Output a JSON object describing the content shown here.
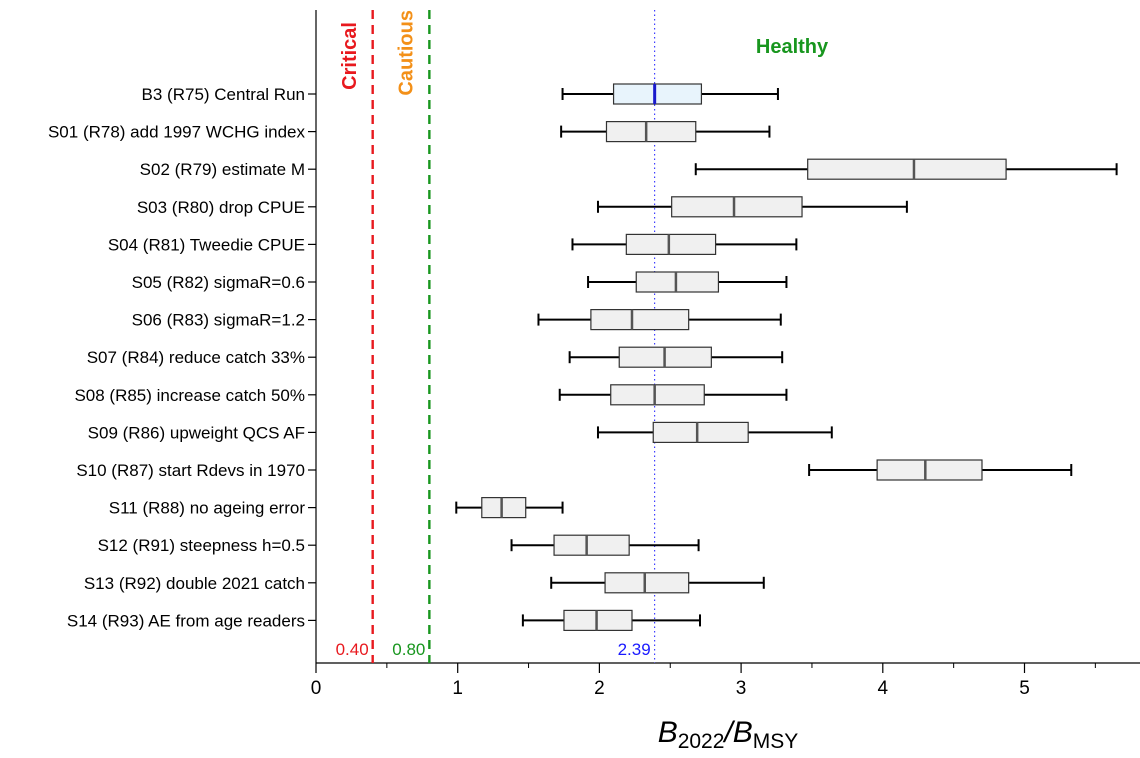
{
  "chart_data": {
    "type": "boxplot",
    "orientation": "horizontal",
    "xlabel": {
      "main": "B",
      "sub1": "2022",
      "sep": "/",
      "main2": "B",
      "sub2": "MSY"
    },
    "xlim": [
      0,
      5.8
    ],
    "xticks": [
      0,
      1,
      2,
      3,
      4,
      5
    ],
    "xtick_labels": [
      "0",
      "1",
      "2",
      "3",
      "4",
      "5"
    ],
    "zones": [
      {
        "label": "Critical",
        "color": "#e8191e"
      },
      {
        "label": "Cautious",
        "color": "#f39018"
      },
      {
        "label": "Healthy",
        "color": "#18961e"
      }
    ],
    "reference_lines": [
      {
        "value": 0.4,
        "label": "0.40",
        "color": "#e8191e",
        "style": "dashed"
      },
      {
        "value": 0.8,
        "label": "0.80",
        "color": "#18961e",
        "style": "dashed"
      },
      {
        "value": 2.39,
        "label": "2.39",
        "color": "#1a1aff",
        "style": "dotted"
      }
    ],
    "box_fill": "#f0f0f0",
    "highlight_fill": "#e8f4fc",
    "highlight_median_color": "#1a1acc",
    "runs": [
      {
        "label": "B3 (R75) Central Run",
        "whisker_low": 1.74,
        "q1": 2.1,
        "median": 2.39,
        "q3": 2.72,
        "whisker_high": 3.26,
        "highlight": true
      },
      {
        "label": "S01 (R78) add 1997 WCHG index",
        "whisker_low": 1.73,
        "q1": 2.05,
        "median": 2.33,
        "q3": 2.68,
        "whisker_high": 3.2
      },
      {
        "label": "S02 (R79) estimate M",
        "whisker_low": 2.68,
        "q1": 3.47,
        "median": 4.22,
        "q3": 4.87,
        "whisker_high": 5.65
      },
      {
        "label": "S03 (R80) drop CPUE",
        "whisker_low": 1.99,
        "q1": 2.51,
        "median": 2.95,
        "q3": 3.43,
        "whisker_high": 4.17
      },
      {
        "label": "S04 (R81) Tweedie CPUE",
        "whisker_low": 1.81,
        "q1": 2.19,
        "median": 2.49,
        "q3": 2.82,
        "whisker_high": 3.39
      },
      {
        "label": "S05 (R82) sigmaR=0.6",
        "whisker_low": 1.92,
        "q1": 2.26,
        "median": 2.54,
        "q3": 2.84,
        "whisker_high": 3.32
      },
      {
        "label": "S06 (R83) sigmaR=1.2",
        "whisker_low": 1.57,
        "q1": 1.94,
        "median": 2.23,
        "q3": 2.63,
        "whisker_high": 3.28
      },
      {
        "label": "S07 (R84) reduce catch 33%",
        "whisker_low": 1.79,
        "q1": 2.14,
        "median": 2.46,
        "q3": 2.79,
        "whisker_high": 3.29
      },
      {
        "label": "S08 (R85) increase catch 50%",
        "whisker_low": 1.72,
        "q1": 2.08,
        "median": 2.39,
        "q3": 2.74,
        "whisker_high": 3.32
      },
      {
        "label": "S09 (R86) upweight QCS AF",
        "whisker_low": 1.99,
        "q1": 2.38,
        "median": 2.69,
        "q3": 3.05,
        "whisker_high": 3.64
      },
      {
        "label": "S10 (R87) start Rdevs in 1970",
        "whisker_low": 3.48,
        "q1": 3.96,
        "median": 4.3,
        "q3": 4.7,
        "whisker_high": 5.33
      },
      {
        "label": "S11 (R88) no ageing error",
        "whisker_low": 0.99,
        "q1": 1.17,
        "median": 1.31,
        "q3": 1.48,
        "whisker_high": 1.74
      },
      {
        "label": "S12 (R91) steepness h=0.5",
        "whisker_low": 1.38,
        "q1": 1.68,
        "median": 1.91,
        "q3": 2.21,
        "whisker_high": 2.7
      },
      {
        "label": "S13 (R92) double 2021 catch",
        "whisker_low": 1.66,
        "q1": 2.04,
        "median": 2.32,
        "q3": 2.63,
        "whisker_high": 3.16
      },
      {
        "label": "S14 (R93) AE from age readers",
        "whisker_low": 1.46,
        "q1": 1.75,
        "median": 1.98,
        "q3": 2.23,
        "whisker_high": 2.71
      }
    ]
  }
}
